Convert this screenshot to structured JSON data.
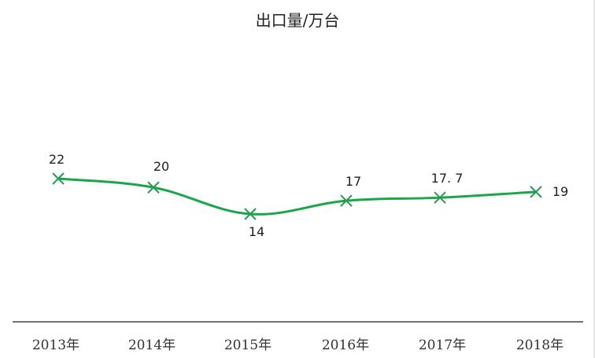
{
  "chart_data": {
    "type": "line",
    "title": "出口量/万台",
    "xlabel": "",
    "ylabel": "",
    "categories": [
      "2013年",
      "2014年",
      "2015年",
      "2016年",
      "2017年",
      "2018年"
    ],
    "series": [
      {
        "name": "出口量",
        "values": [
          22,
          20,
          14,
          17,
          17.7,
          19
        ],
        "data_labels": [
          "22",
          "20",
          "14",
          "17",
          "17. 7",
          "19"
        ],
        "color": "#1aa64a",
        "marker": "x"
      }
    ],
    "grid": false,
    "legend": null,
    "y_axis_visible": false
  }
}
